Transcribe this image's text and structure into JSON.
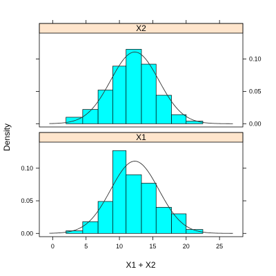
{
  "chart_data": {
    "type": "bar",
    "xlabel": "X1 + X2",
    "ylabel": "Density",
    "xlim": [
      -2,
      28.5
    ],
    "ylim": [
      -0.005,
      0.14
    ],
    "x_ticks": [
      0,
      5,
      10,
      15,
      20,
      25
    ],
    "y_ticks": [
      0.0,
      0.05,
      0.1
    ],
    "y_tick_labels": [
      "0.00",
      "0.05",
      "0.10"
    ],
    "bar_color": "#00ffff",
    "strip_color": "#ffe5cc",
    "panels": [
      {
        "name": "X2",
        "bin_edges": [
          2,
          4.5,
          6.8,
          9,
          11,
          13.3,
          15.5,
          17.8,
          20,
          22.5
        ],
        "densities": [
          0.01,
          0.022,
          0.052,
          0.089,
          0.115,
          0.092,
          0.044,
          0.014,
          0.004
        ],
        "normal_curve": {
          "mean": 12.3,
          "sd": 3.6
        }
      },
      {
        "name": "X1",
        "bin_edges": [
          2,
          4.5,
          6.8,
          9,
          11,
          13.3,
          15.5,
          17.8,
          20,
          22.5
        ],
        "densities": [
          0.004,
          0.018,
          0.049,
          0.127,
          0.09,
          0.077,
          0.04,
          0.03,
          0.006
        ],
        "normal_curve": {
          "mean": 12.3,
          "sd": 3.6
        }
      }
    ]
  }
}
